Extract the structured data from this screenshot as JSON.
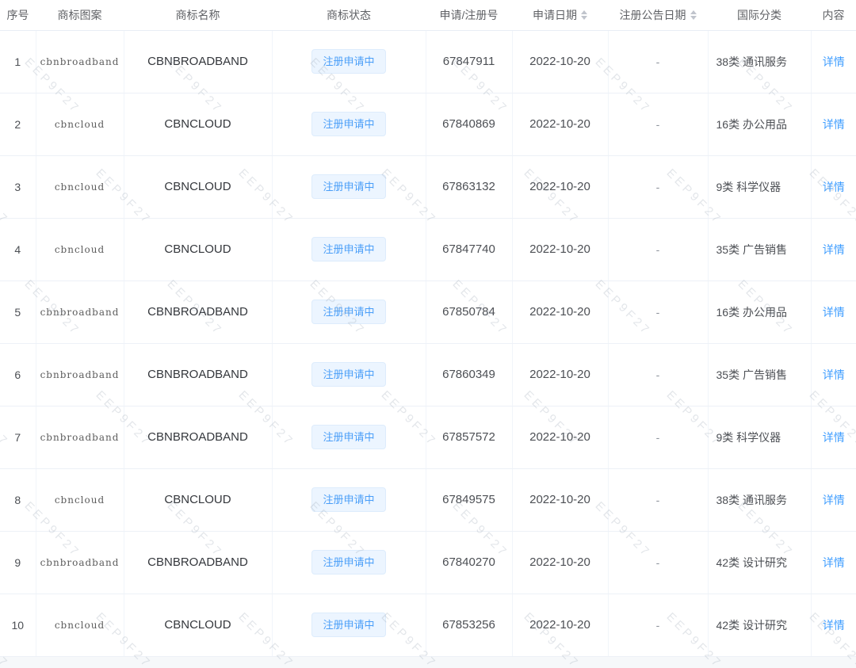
{
  "watermark": {
    "text": "EEP9F27"
  },
  "colors": {
    "link": "#409eff",
    "tag_text": "#4a9ef8",
    "tag_background": "#ecf5ff",
    "tag_border": "#ddecfc",
    "header_text": "#606266",
    "row_border": "#edf1f7"
  },
  "table": {
    "columns": [
      {
        "label": "序号",
        "sortable": false
      },
      {
        "label": "商标图案",
        "sortable": false
      },
      {
        "label": "商标名称",
        "sortable": false
      },
      {
        "label": "商标状态",
        "sortable": false
      },
      {
        "label": "申请/注册号",
        "sortable": false
      },
      {
        "label": "申请日期",
        "sortable": true
      },
      {
        "label": "注册公告日期",
        "sortable": true
      },
      {
        "label": "国际分类",
        "sortable": false
      },
      {
        "label": "内容",
        "sortable": false
      }
    ],
    "rows": [
      {
        "index": "1",
        "image_text": "cbnbroadband",
        "name": "CBNBROADBAND",
        "status": "注册申请中",
        "reg_no": "67847911",
        "apply_date": "2022-10-20",
        "announce_date": "-",
        "intl_class": "38类 通讯服务",
        "content": "详情"
      },
      {
        "index": "2",
        "image_text": "cbncloud",
        "name": "CBNCLOUD",
        "status": "注册申请中",
        "reg_no": "67840869",
        "apply_date": "2022-10-20",
        "announce_date": "-",
        "intl_class": "16类 办公用品",
        "content": "详情"
      },
      {
        "index": "3",
        "image_text": "cbncloud",
        "name": "CBNCLOUD",
        "status": "注册申请中",
        "reg_no": "67863132",
        "apply_date": "2022-10-20",
        "announce_date": "-",
        "intl_class": "9类 科学仪器",
        "content": "详情"
      },
      {
        "index": "4",
        "image_text": "cbncloud",
        "name": "CBNCLOUD",
        "status": "注册申请中",
        "reg_no": "67847740",
        "apply_date": "2022-10-20",
        "announce_date": "-",
        "intl_class": "35类 广告销售",
        "content": "详情"
      },
      {
        "index": "5",
        "image_text": "cbnbroadband",
        "name": "CBNBROADBAND",
        "status": "注册申请中",
        "reg_no": "67850784",
        "apply_date": "2022-10-20",
        "announce_date": "-",
        "intl_class": "16类 办公用品",
        "content": "详情"
      },
      {
        "index": "6",
        "image_text": "cbnbroadband",
        "name": "CBNBROADBAND",
        "status": "注册申请中",
        "reg_no": "67860349",
        "apply_date": "2022-10-20",
        "announce_date": "-",
        "intl_class": "35类 广告销售",
        "content": "详情"
      },
      {
        "index": "7",
        "image_text": "cbnbroadband",
        "name": "CBNBROADBAND",
        "status": "注册申请中",
        "reg_no": "67857572",
        "apply_date": "2022-10-20",
        "announce_date": "-",
        "intl_class": "9类 科学仪器",
        "content": "详情"
      },
      {
        "index": "8",
        "image_text": "cbncloud",
        "name": "CBNCLOUD",
        "status": "注册申请中",
        "reg_no": "67849575",
        "apply_date": "2022-10-20",
        "announce_date": "-",
        "intl_class": "38类 通讯服务",
        "content": "详情"
      },
      {
        "index": "9",
        "image_text": "cbnbroadband",
        "name": "CBNBROADBAND",
        "status": "注册申请中",
        "reg_no": "67840270",
        "apply_date": "2022-10-20",
        "announce_date": "-",
        "intl_class": "42类 设计研究",
        "content": "详情"
      },
      {
        "index": "10",
        "image_text": "cbncloud",
        "name": "CBNCLOUD",
        "status": "注册申请中",
        "reg_no": "67853256",
        "apply_date": "2022-10-20",
        "announce_date": "-",
        "intl_class": "42类 设计研究",
        "content": "详情"
      }
    ]
  }
}
